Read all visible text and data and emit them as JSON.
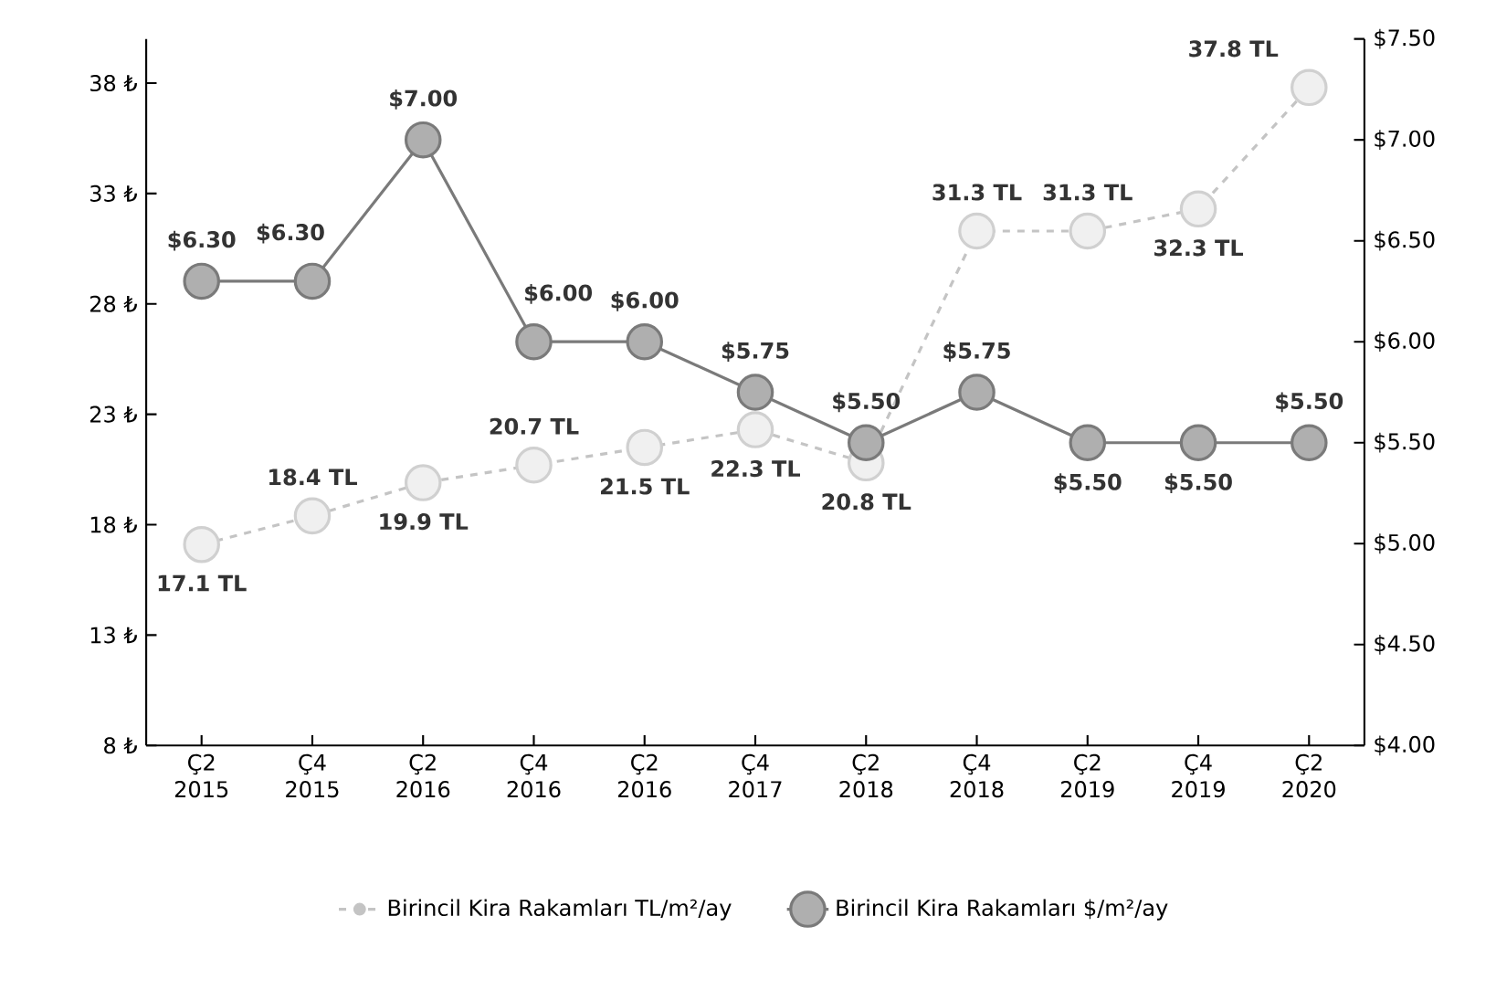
{
  "chart_data": {
    "type": "line",
    "categories": [
      "Ç2 2015",
      "Ç4 2015",
      "Ç2 2016",
      "Ç4 2016",
      "Ç2 2016",
      "Ç4 2017",
      "Ç2 2018",
      "Ç4 2018",
      "Ç2 2019",
      "Ç4 2019",
      "Ç2 2020"
    ],
    "series": [
      {
        "name": "Birincil Kira Rakamları TL/m²/ay",
        "color": "#c4c4c4",
        "marker": "circle",
        "line_style": "dashed",
        "values": [
          17.1,
          18.4,
          19.9,
          20.7,
          21.5,
          22.3,
          20.8,
          31.3,
          31.3,
          32.3,
          37.8
        ],
        "value_labels": [
          "17.1 TL",
          "18.4 TL",
          "19.9 TL",
          "20.7 TL",
          "21.5 TL",
          "22.3 TL",
          "20.8 TL",
          "31.3 TL",
          "31.3 TL",
          "32.3 TL",
          "37.8 TL"
        ]
      },
      {
        "name": "Birincil Kira Rakamları $/m²/ay",
        "color": "#7a7a7a",
        "marker": "circle",
        "line_style": "solid",
        "axis": "y2",
        "values": [
          6.3,
          6.3,
          7.0,
          6.0,
          6.0,
          5.75,
          5.5,
          5.75,
          5.5,
          5.5,
          5.5
        ],
        "value_labels": [
          "$6.30",
          "$6.30",
          "$7.00",
          "$6.00",
          "$6.00",
          "$5.75",
          "$5.50",
          "$5.75",
          "$5.50",
          "$5.50",
          "$5.50"
        ]
      }
    ],
    "ylim": [
      8,
      40
    ],
    "yticks": [
      {
        "value": 8,
        "label": "8 ₺"
      },
      {
        "value": 13,
        "label": "13 ₺"
      },
      {
        "value": 18,
        "label": "18 ₺"
      },
      {
        "value": 23,
        "label": "23 ₺"
      },
      {
        "value": 28,
        "label": "28 ₺"
      },
      {
        "value": 33,
        "label": "33 ₺"
      },
      {
        "value": 38,
        "label": "38 ₺"
      }
    ],
    "y2lim": [
      4.0,
      7.5
    ],
    "y2ticks": [
      {
        "value": 4.0,
        "label": "$4.00"
      },
      {
        "value": 4.5,
        "label": "$4.50"
      },
      {
        "value": 5.0,
        "label": "$5.00"
      },
      {
        "value": 5.5,
        "label": "$5.50"
      },
      {
        "value": 6.0,
        "label": "$6.00"
      },
      {
        "value": 6.5,
        "label": "$6.50"
      },
      {
        "value": 7.0,
        "label": "$7.00"
      },
      {
        "value": 7.5,
        "label": "$7.50"
      }
    ],
    "legend": "bottom"
  }
}
